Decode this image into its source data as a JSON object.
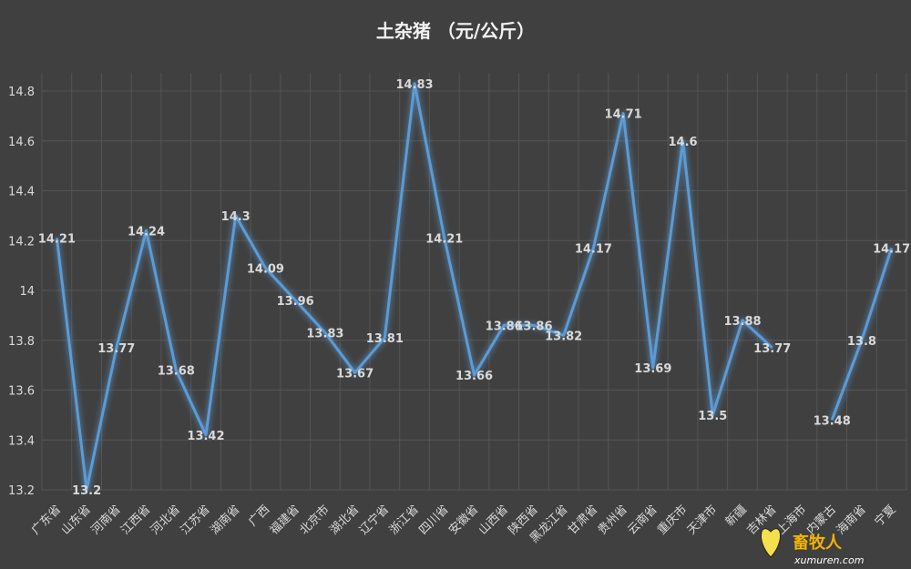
{
  "chart_data": {
    "type": "line",
    "title": "土杂猪   （元/公斤）",
    "xlabel": "",
    "ylabel": "",
    "ylim": [
      13.2,
      14.8
    ],
    "yticks": [
      "13.2",
      "13.4",
      "13.6",
      "13.8",
      "14",
      "14.2",
      "14.4",
      "14.6",
      "14.8"
    ],
    "grid": true,
    "legend": "none",
    "categories": [
      "广东省",
      "山东省",
      "河南省",
      "江西省",
      "河北省",
      "江苏省",
      "湖南省",
      "广西",
      "福建省",
      "北京市",
      "湖北省",
      "辽宁省",
      "浙江省",
      "四川省",
      "安徽省",
      "山西省",
      "陕西省",
      "黑龙江省",
      "甘肃省",
      "贵州省",
      "云南省",
      "重庆市",
      "天津市",
      "新疆",
      "吉林省",
      "上海市",
      "内蒙古",
      "海南省",
      "宁夏"
    ],
    "series": [
      {
        "values": [
          14.21,
          13.2,
          13.77,
          14.24,
          13.68,
          13.42,
          14.3,
          14.09,
          13.96,
          13.83,
          13.67,
          13.81,
          14.83,
          14.21,
          13.66,
          13.86,
          13.86,
          13.82,
          14.17,
          14.71,
          13.69,
          14.6,
          13.5,
          13.88,
          13.77,
          null,
          13.48,
          13.8,
          14.17
        ],
        "labels": [
          "14.21",
          "13.2",
          "13.77",
          "14.24",
          "13.68",
          "13.42",
          "14.3",
          "14.09",
          "13.96",
          "13.83",
          "13.67",
          "13.81",
          "14.83",
          "14.21",
          "13.66",
          "13.86",
          "13.86",
          "13.82",
          "14.17",
          "14.71",
          "13.69",
          "14.6",
          "13.5",
          "13.88",
          "13.77",
          "",
          "13.48",
          "13.8",
          "14.17"
        ],
        "color": "#5b9bd5"
      }
    ]
  },
  "watermark": {
    "logo_text": "畜牧人",
    "logo_sub": "xumuren.com"
  }
}
